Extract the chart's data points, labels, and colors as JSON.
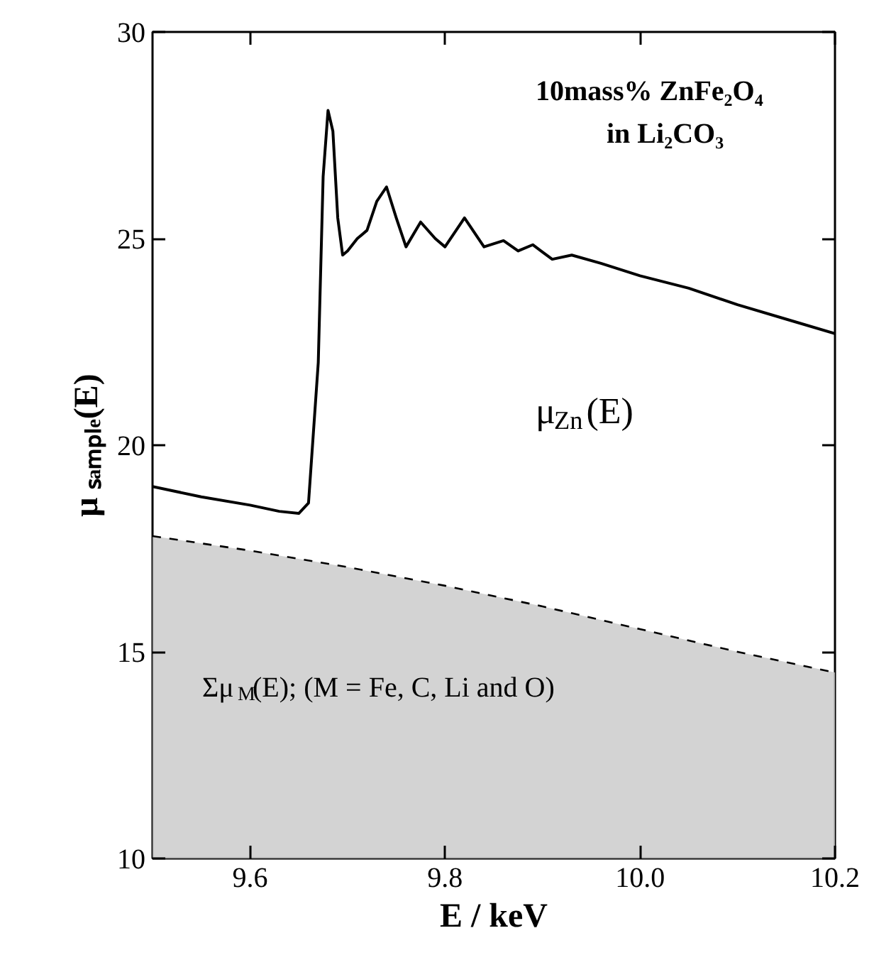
{
  "chart_data": {
    "type": "line",
    "xlabel": "E / keV",
    "ylabel": "μ ₛₐₘₚₗₑ(E)",
    "xlim": [
      9.5,
      10.2
    ],
    "ylim": [
      10,
      30
    ],
    "xticks": [
      9.6,
      9.8,
      {
        "value": 10.0,
        "label": "10.0"
      },
      10.2
    ],
    "yticks": [
      10,
      15,
      20,
      25,
      30
    ],
    "grid": false,
    "series": [
      {
        "type": "line",
        "color": "#000000",
        "line_style": "solid",
        "x": [
          9.5,
          9.55,
          9.6,
          9.63,
          9.65,
          9.66,
          9.67,
          9.675,
          9.68,
          9.685,
          9.69,
          9.695,
          9.7,
          9.71,
          9.72,
          9.73,
          9.74,
          9.75,
          9.76,
          9.775,
          9.79,
          9.8,
          9.82,
          9.84,
          9.86,
          9.875,
          9.89,
          9.91,
          9.93,
          9.96,
          10.0,
          10.05,
          10.1,
          10.15,
          10.2
        ],
        "values": [
          19.0,
          18.75,
          18.55,
          18.4,
          18.35,
          18.6,
          22.0,
          26.5,
          28.1,
          27.6,
          25.5,
          24.6,
          24.7,
          25.0,
          25.2,
          25.9,
          26.25,
          25.5,
          24.8,
          25.4,
          25.0,
          24.8,
          25.5,
          24.8,
          24.95,
          24.7,
          24.85,
          24.5,
          24.6,
          24.4,
          24.1,
          23.8,
          23.4,
          23.05,
          22.7
        ]
      },
      {
        "type": "area",
        "color": "#c8c8c8",
        "line_style": "dashed",
        "x": [
          9.5,
          9.6,
          9.7,
          9.8,
          9.9,
          10.0,
          10.1,
          10.2
        ],
        "values": [
          17.8,
          17.45,
          17.05,
          16.6,
          16.1,
          15.55,
          15.0,
          14.5
        ]
      }
    ],
    "annotations": [
      "10mass% ZnFe₂O₄",
      "in Li₂CO₃",
      "μ$_{Zn}$(E)",
      "Σμ$_{M}$(E); (M = Fe, C, Li and O)"
    ]
  }
}
